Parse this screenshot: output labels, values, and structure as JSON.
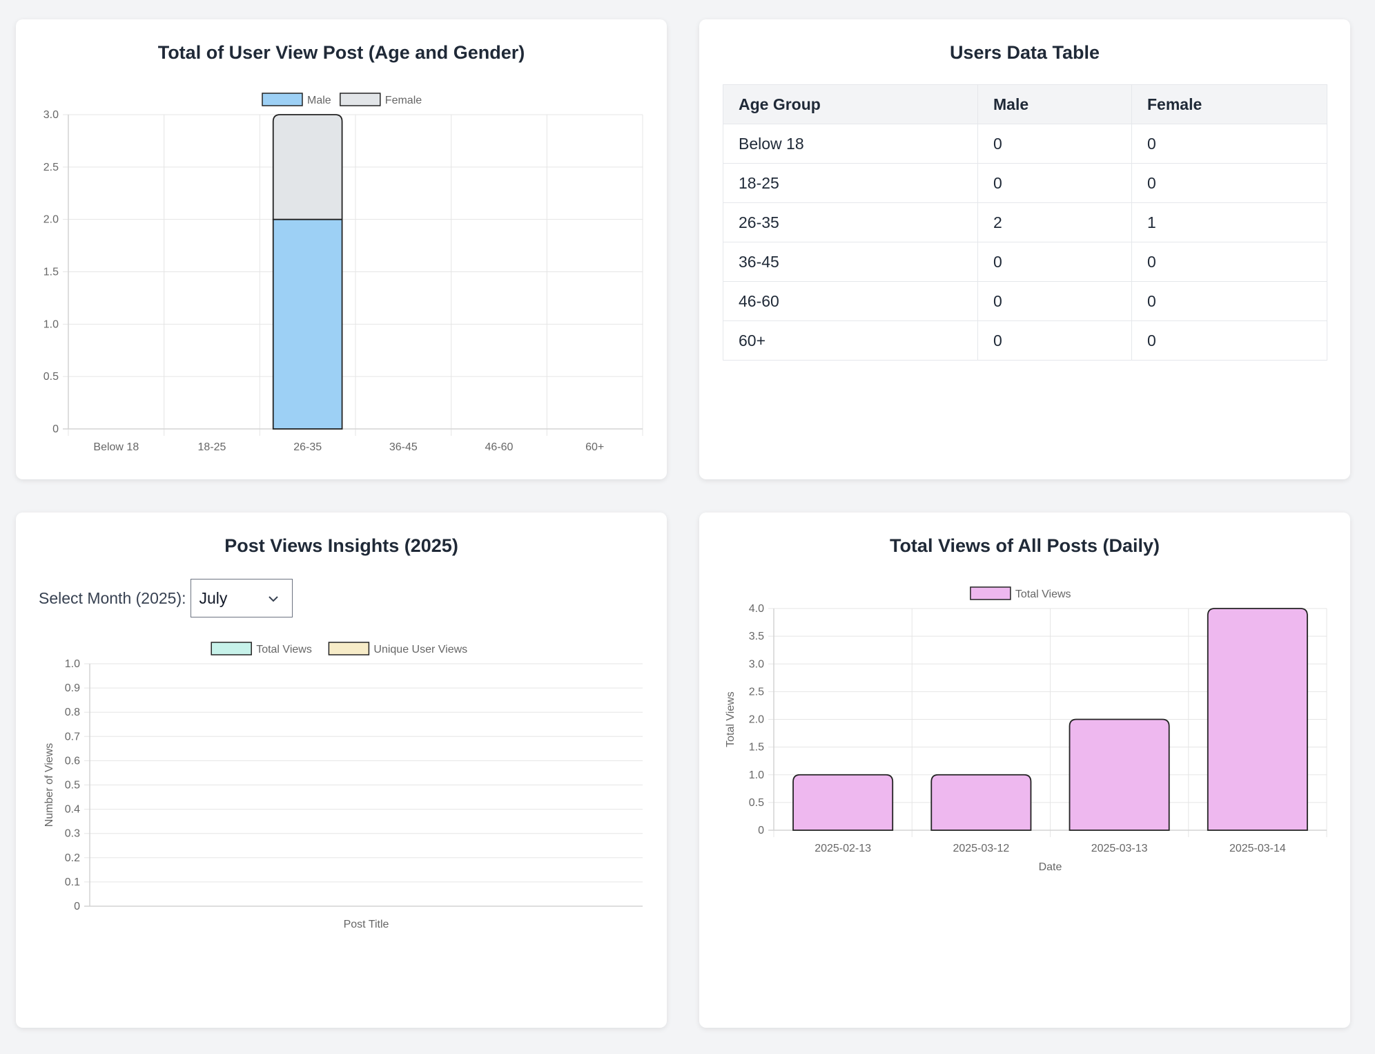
{
  "charts": {
    "age_gender": {
      "title": "Total of User View Post (Age and Gender)",
      "legend": [
        "Male",
        "Female"
      ]
    },
    "insights": {
      "title": "Post Views Insights (2025)",
      "month_label": "Select Month (2025):",
      "month_value": "July",
      "legend": [
        "Total Views",
        "Unique User Views"
      ],
      "xlabel": "Post Title",
      "ylabel": "Number of Views"
    },
    "daily": {
      "title": "Total Views of All Posts (Daily)",
      "legend": [
        "Total Views"
      ],
      "xlabel": "Date",
      "ylabel": "Total Views"
    }
  },
  "table": {
    "title": "Users Data Table",
    "headers": [
      "Age Group",
      "Male",
      "Female"
    ],
    "rows": [
      [
        "Below 18",
        "0",
        "0"
      ],
      [
        "18-25",
        "0",
        "0"
      ],
      [
        "26-35",
        "2",
        "1"
      ],
      [
        "36-45",
        "0",
        "0"
      ],
      [
        "46-60",
        "0",
        "0"
      ],
      [
        "60+",
        "0",
        "0"
      ]
    ]
  },
  "colors": {
    "male": "#9dd0f5",
    "female": "#e2e5e8",
    "total_views_legend": "#c7f2ea",
    "unique_views_legend": "#f7ecc8",
    "daily_bar": "#eeb8ef"
  },
  "icons": {
    "select": "chevron-down-icon"
  },
  "chart_data": [
    {
      "type": "bar",
      "stacked": true,
      "title": "Total of User View Post (Age and Gender)",
      "categories": [
        "Below 18",
        "18-25",
        "26-35",
        "36-45",
        "46-60",
        "60+"
      ],
      "series": [
        {
          "name": "Male",
          "values": [
            0,
            0,
            2,
            0,
            0,
            0
          ]
        },
        {
          "name": "Female",
          "values": [
            0,
            0,
            1,
            0,
            0,
            0
          ]
        }
      ],
      "yticks": [
        "0",
        "0.5",
        "1.0",
        "1.5",
        "2.0",
        "2.5",
        "3.0"
      ],
      "ylim": [
        0,
        3
      ],
      "grid": true,
      "legend": "top"
    },
    {
      "type": "bar",
      "title": "Post Views Insights (2025)",
      "categories": [],
      "series": [
        {
          "name": "Total Views",
          "values": []
        },
        {
          "name": "Unique User Views",
          "values": []
        }
      ],
      "yticks": [
        "0",
        "0.1",
        "0.2",
        "0.3",
        "0.4",
        "0.5",
        "0.6",
        "0.7",
        "0.8",
        "0.9",
        "1.0"
      ],
      "ylim": [
        0,
        1
      ],
      "xlabel": "Post Title",
      "ylabel": "Number of Views",
      "grid": true,
      "legend": "top"
    },
    {
      "type": "bar",
      "title": "Total Views of All Posts (Daily)",
      "categories": [
        "2025-02-13",
        "2025-03-12",
        "2025-03-13",
        "2025-03-14"
      ],
      "series": [
        {
          "name": "Total Views",
          "values": [
            1,
            1,
            2,
            4
          ]
        }
      ],
      "yticks": [
        "0",
        "0.5",
        "1.0",
        "1.5",
        "2.0",
        "2.5",
        "3.0",
        "3.5",
        "4.0"
      ],
      "ylim": [
        0,
        4
      ],
      "xlabel": "Date",
      "ylabel": "Total Views",
      "grid": true,
      "legend": "top"
    }
  ]
}
